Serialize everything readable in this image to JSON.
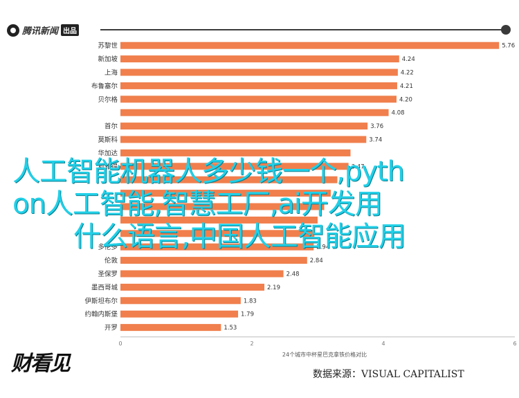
{
  "header": {
    "brand_name": "腾讯新闻",
    "brand_tag": "出品",
    "progress_ratio": 0.99,
    "logo_icon": "tencent-news-circle-logo"
  },
  "overlay": {
    "line1": "人工智能机器人多少钱一个,pyth",
    "line2": "on人工智能,智慧工厂,ai开发用",
    "line3": "什么语言,中国人工智能应用"
  },
  "footer": {
    "logo_text": "财看见",
    "source_text": "数据来源：VISUAL CAPITALIST"
  },
  "chart_data": {
    "type": "bar",
    "orientation": "horizontal",
    "bar_color": "#f07f4d",
    "categories": [
      "苏黎世",
      "新加坡",
      "上海",
      "布鲁塞尔",
      "贝尔格",
      "",
      "首尔",
      "莫斯科",
      "华加达",
      "利雅得",
      "",
      "",
      "",
      "",
      "",
      "多伦多",
      "伦敦",
      "圣保罗",
      "墨西哥城",
      "伊斯坦布尔",
      "约翰内斯堡",
      "开罗"
    ],
    "values": [
      5.76,
      4.24,
      4.22,
      4.21,
      4.2,
      4.08,
      3.76,
      3.74,
      3.5,
      3.47,
      3.3,
      3.2,
      3.1,
      3.0,
      2.95,
      2.94,
      2.84,
      2.48,
      2.19,
      1.83,
      1.79,
      1.53
    ],
    "value_labels": [
      "5.76",
      "4.24",
      "4.22",
      "4.21",
      "4.20",
      "4.08",
      "3.76",
      "3.74",
      "",
      "3.47",
      "",
      "",
      "",
      "",
      "",
      "2.94",
      "2.84",
      "2.48",
      "2.19",
      "1.83",
      "1.79",
      "1.53"
    ],
    "xlim": [
      0,
      6
    ],
    "xticks": [
      0,
      2,
      4,
      6
    ],
    "xlabel": "24个城市中杯星巴克拿铁价格对比",
    "grid": false
  }
}
